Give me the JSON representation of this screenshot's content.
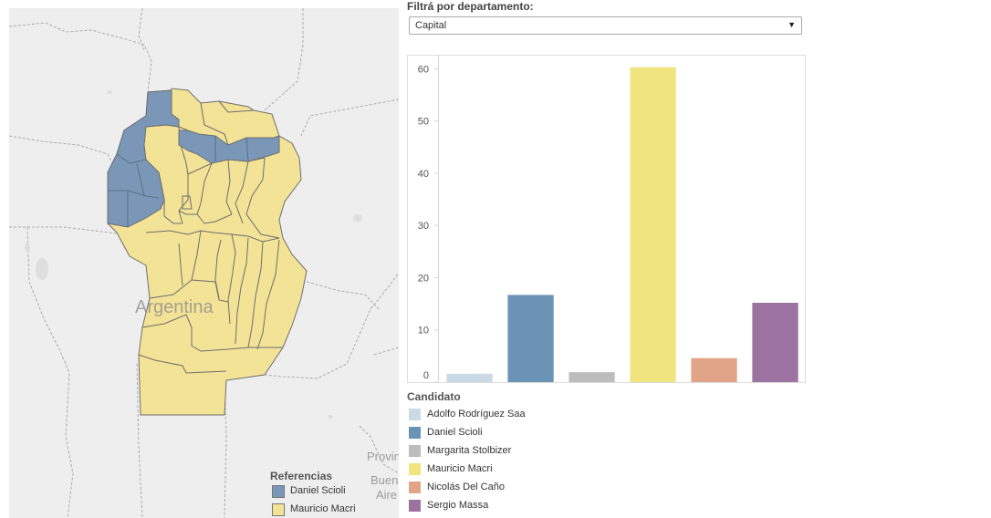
{
  "filter": {
    "label": "Filtrá por departamento:",
    "selected": "Capital",
    "caret": "▼"
  },
  "map": {
    "country_label": "Argentina",
    "region_label_lines": [
      "Provin",
      "Buen",
      "Aire"
    ],
    "legend_title": "Referencias",
    "legend": [
      {
        "label": "Daniel Scioli",
        "color": "#7b97b8"
      },
      {
        "label": "Mauricio Macri",
        "color": "#f3e397"
      }
    ]
  },
  "legend": {
    "title": "Candidato",
    "items": [
      {
        "label": "Adolfo Rodríguez Saa",
        "color": "#c9d9e6"
      },
      {
        "label": "Daniel Scioli",
        "color": "#6a93b6"
      },
      {
        "label": "Margarita Stolbizer",
        "color": "#bdbdbd"
      },
      {
        "label": "Mauricio Macri",
        "color": "#efe47d"
      },
      {
        "label": "Nicolás Del Caño",
        "color": "#e2a488"
      },
      {
        "label": "Sergio Massa",
        "color": "#9c72a1"
      }
    ]
  },
  "chart_data": {
    "type": "bar",
    "categories": [
      "Adolfo Rodríguez Saa",
      "Daniel Scioli",
      "Margarita Stolbizer",
      "Mauricio Macri",
      "Nicolás Del Caño",
      "Sergio Massa"
    ],
    "values": [
      1.6,
      16.7,
      1.9,
      60.3,
      4.6,
      15.2
    ],
    "colors": [
      "#c9d9e6",
      "#6a93b6",
      "#bdbdbd",
      "#efe47d",
      "#e2a488",
      "#9c72a1"
    ],
    "ylim": [
      0,
      62
    ],
    "yticks": [
      0,
      10,
      20,
      30,
      40,
      50,
      60
    ],
    "title": "",
    "xlabel": "",
    "ylabel": "",
    "grid": false
  }
}
